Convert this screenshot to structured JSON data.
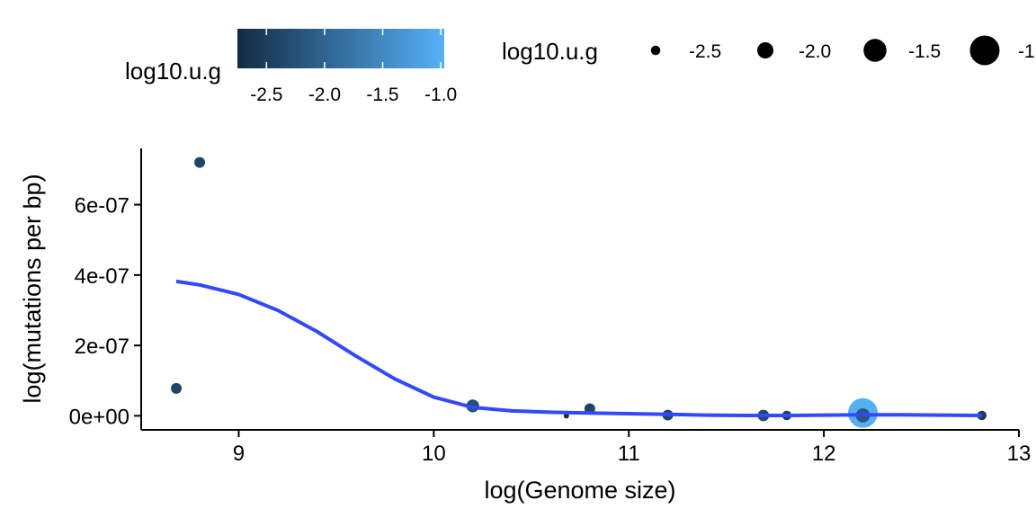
{
  "chart_data": {
    "type": "scatter",
    "xlabel": "log(Genome size)",
    "ylabel": "log(mutations per bp)",
    "xlim": [
      8.5,
      13.0
    ],
    "ylim": [
      -4e-08,
      7.6e-07
    ],
    "x_ticks": [
      9,
      10,
      11,
      12,
      13
    ],
    "x_tick_labels": [
      "9",
      "10",
      "11",
      "12",
      "13"
    ],
    "y_ticks": [
      0,
      2e-07,
      4e-07,
      6e-07
    ],
    "y_tick_labels": [
      "0e+00",
      "2e-07",
      "4e-07",
      "6e-07"
    ],
    "grid": false,
    "points": [
      {
        "x": 8.68,
        "y": 7.8e-08,
        "g": -2.4
      },
      {
        "x": 8.8,
        "y": 7.2e-07,
        "g": -2.4
      },
      {
        "x": 10.2,
        "y": 2.8e-08,
        "g": -2.25
      },
      {
        "x": 10.68,
        "y": 0,
        "g": -2.8
      },
      {
        "x": 10.8,
        "y": 2e-08,
        "g": -2.4
      },
      {
        "x": 11.2,
        "y": 2e-09,
        "g": -2.4
      },
      {
        "x": 11.69,
        "y": 1e-09,
        "g": -2.35
      },
      {
        "x": 11.81,
        "y": 1e-09,
        "g": -2.5
      },
      {
        "x": 12.2,
        "y": 8e-09,
        "g": -1.0
      },
      {
        "x": 12.2,
        "y": 1e-09,
        "g": -2.15
      },
      {
        "x": 12.81,
        "y": 1e-09,
        "g": -2.5
      }
    ],
    "smooth": {
      "x": [
        8.68,
        8.8,
        9.0,
        9.2,
        9.4,
        9.6,
        9.8,
        10.0,
        10.2,
        10.4,
        10.6,
        10.8,
        11.0,
        11.2,
        11.4,
        11.6,
        11.8,
        12.0,
        12.2,
        12.4,
        12.6,
        12.81
      ],
      "y": [
        3.82e-07,
        3.72e-07,
        3.45e-07,
        3e-07,
        2.4e-07,
        1.7e-07,
        1.05e-07,
        5.3e-08,
        2.4e-08,
        1.4e-08,
        1e-08,
        8e-09,
        6e-09,
        4e-09,
        2e-09,
        1e-09,
        1e-09,
        2e-09,
        3e-09,
        3e-09,
        2e-09,
        1e-09
      ],
      "color": "#3349ff"
    },
    "colorbar": {
      "title": "log10.u.g",
      "range": [
        -2.75,
        -0.97
      ],
      "ticks": [
        -2.5,
        -2.0,
        -1.5,
        -1.0
      ],
      "tick_labels": [
        "-2.5",
        "-2.0",
        "-1.5",
        "-1.0"
      ],
      "low_color": "#132b43",
      "high_color": "#56b1f7"
    },
    "size_legend": {
      "title": "log10.u.g",
      "values": [
        -2.5,
        -2.0,
        -1.5,
        -1.0
      ],
      "labels": [
        "-2.5",
        "-2.0",
        "-1.5",
        "-1"
      ]
    },
    "legend_position": "top"
  }
}
